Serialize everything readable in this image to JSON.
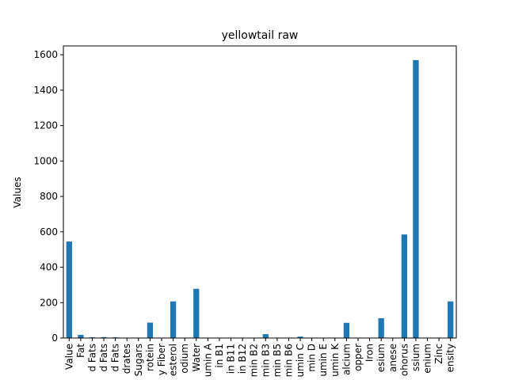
{
  "chart_data": {
    "type": "bar",
    "title": "yellowtail raw",
    "xlabel": "",
    "ylabel": "Values",
    "ylim": [
      0,
      1650
    ],
    "yticks": [
      0,
      200,
      400,
      600,
      800,
      1000,
      1200,
      1400,
      1600
    ],
    "grid": false,
    "legend": "none",
    "bar_color": "#1f77b4",
    "categories": [
      "Value",
      "Fat",
      "d Fats",
      "d Fats",
      "d Fats",
      "drates",
      "Sugars",
      "rotein",
      "y Fiber",
      "esterol",
      "odium",
      "Water",
      "umin A",
      "in B1",
      "in B11",
      "in B12",
      "min B2",
      "min B3",
      "min B5",
      "min B6",
      "umin C",
      "min D",
      "umin E",
      "umin K",
      "alcium",
      "opper",
      "Iron",
      "esium",
      "anese",
      "ohorus",
      "ssium",
      "enium",
      "Zinc",
      "ensity"
    ],
    "values": [
      545,
      18,
      4,
      5,
      4,
      0,
      0,
      87,
      0,
      207,
      0,
      278,
      0,
      0,
      0,
      0,
      0,
      22,
      1,
      1,
      8,
      0,
      0,
      0,
      86,
      0,
      1,
      112,
      0,
      585,
      1570,
      0,
      1,
      207
    ]
  }
}
